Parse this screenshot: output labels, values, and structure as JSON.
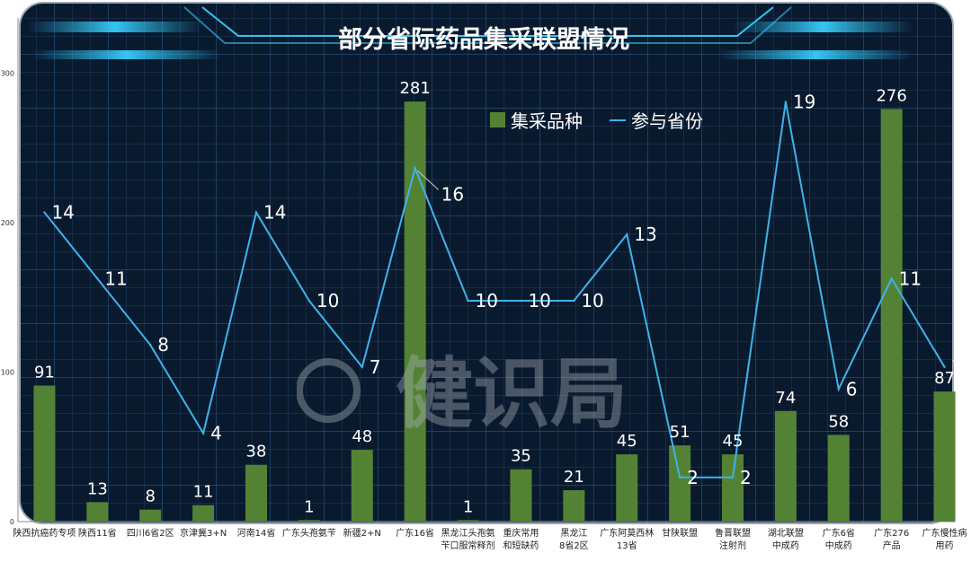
{
  "chart_data": {
    "type": "bar",
    "title": "部分省际药品集采联盟情况",
    "categories": [
      [
        "陕西抗癌药专项"
      ],
      [
        "陕西11省"
      ],
      [
        "四川6省2区"
      ],
      [
        "京津冀3+N"
      ],
      [
        "河南14省"
      ],
      [
        "广东头孢氨苄"
      ],
      [
        "新疆2+N"
      ],
      [
        "广东16省"
      ],
      [
        "黑龙江头孢氨",
        "苄口服常释剂"
      ],
      [
        "重庆常用",
        "和短缺药"
      ],
      [
        "黑龙江",
        "8省2区"
      ],
      [
        "广东阿莫西林",
        "13省"
      ],
      [
        "甘陕联盟"
      ],
      [
        "鲁晋联盟",
        "注射剂"
      ],
      [
        "湖北联盟",
        "中成药"
      ],
      [
        "广东6省",
        "中成药"
      ],
      [
        "广东276",
        "产品"
      ],
      [
        "广东慢性病",
        "用药"
      ]
    ],
    "series": [
      {
        "name": "集采品种",
        "type": "bar",
        "color": "#548235",
        "values": [
          91,
          13,
          8,
          11,
          38,
          1,
          48,
          281,
          1,
          35,
          21,
          45,
          51,
          45,
          74,
          58,
          276,
          87
        ]
      },
      {
        "name": "参与省份",
        "type": "line",
        "color": "#3fb2ea",
        "values": [
          14,
          11,
          8,
          4,
          14,
          10,
          7,
          16,
          10,
          10,
          10,
          13,
          2,
          2,
          19,
          6,
          11,
          7
        ]
      }
    ],
    "y_axis": {
      "ylim": [
        0,
        330
      ],
      "ticks": [
        "0",
        "100",
        "200",
        "300"
      ]
    },
    "legend": "top-center",
    "grid": true
  },
  "watermark": "健识局"
}
